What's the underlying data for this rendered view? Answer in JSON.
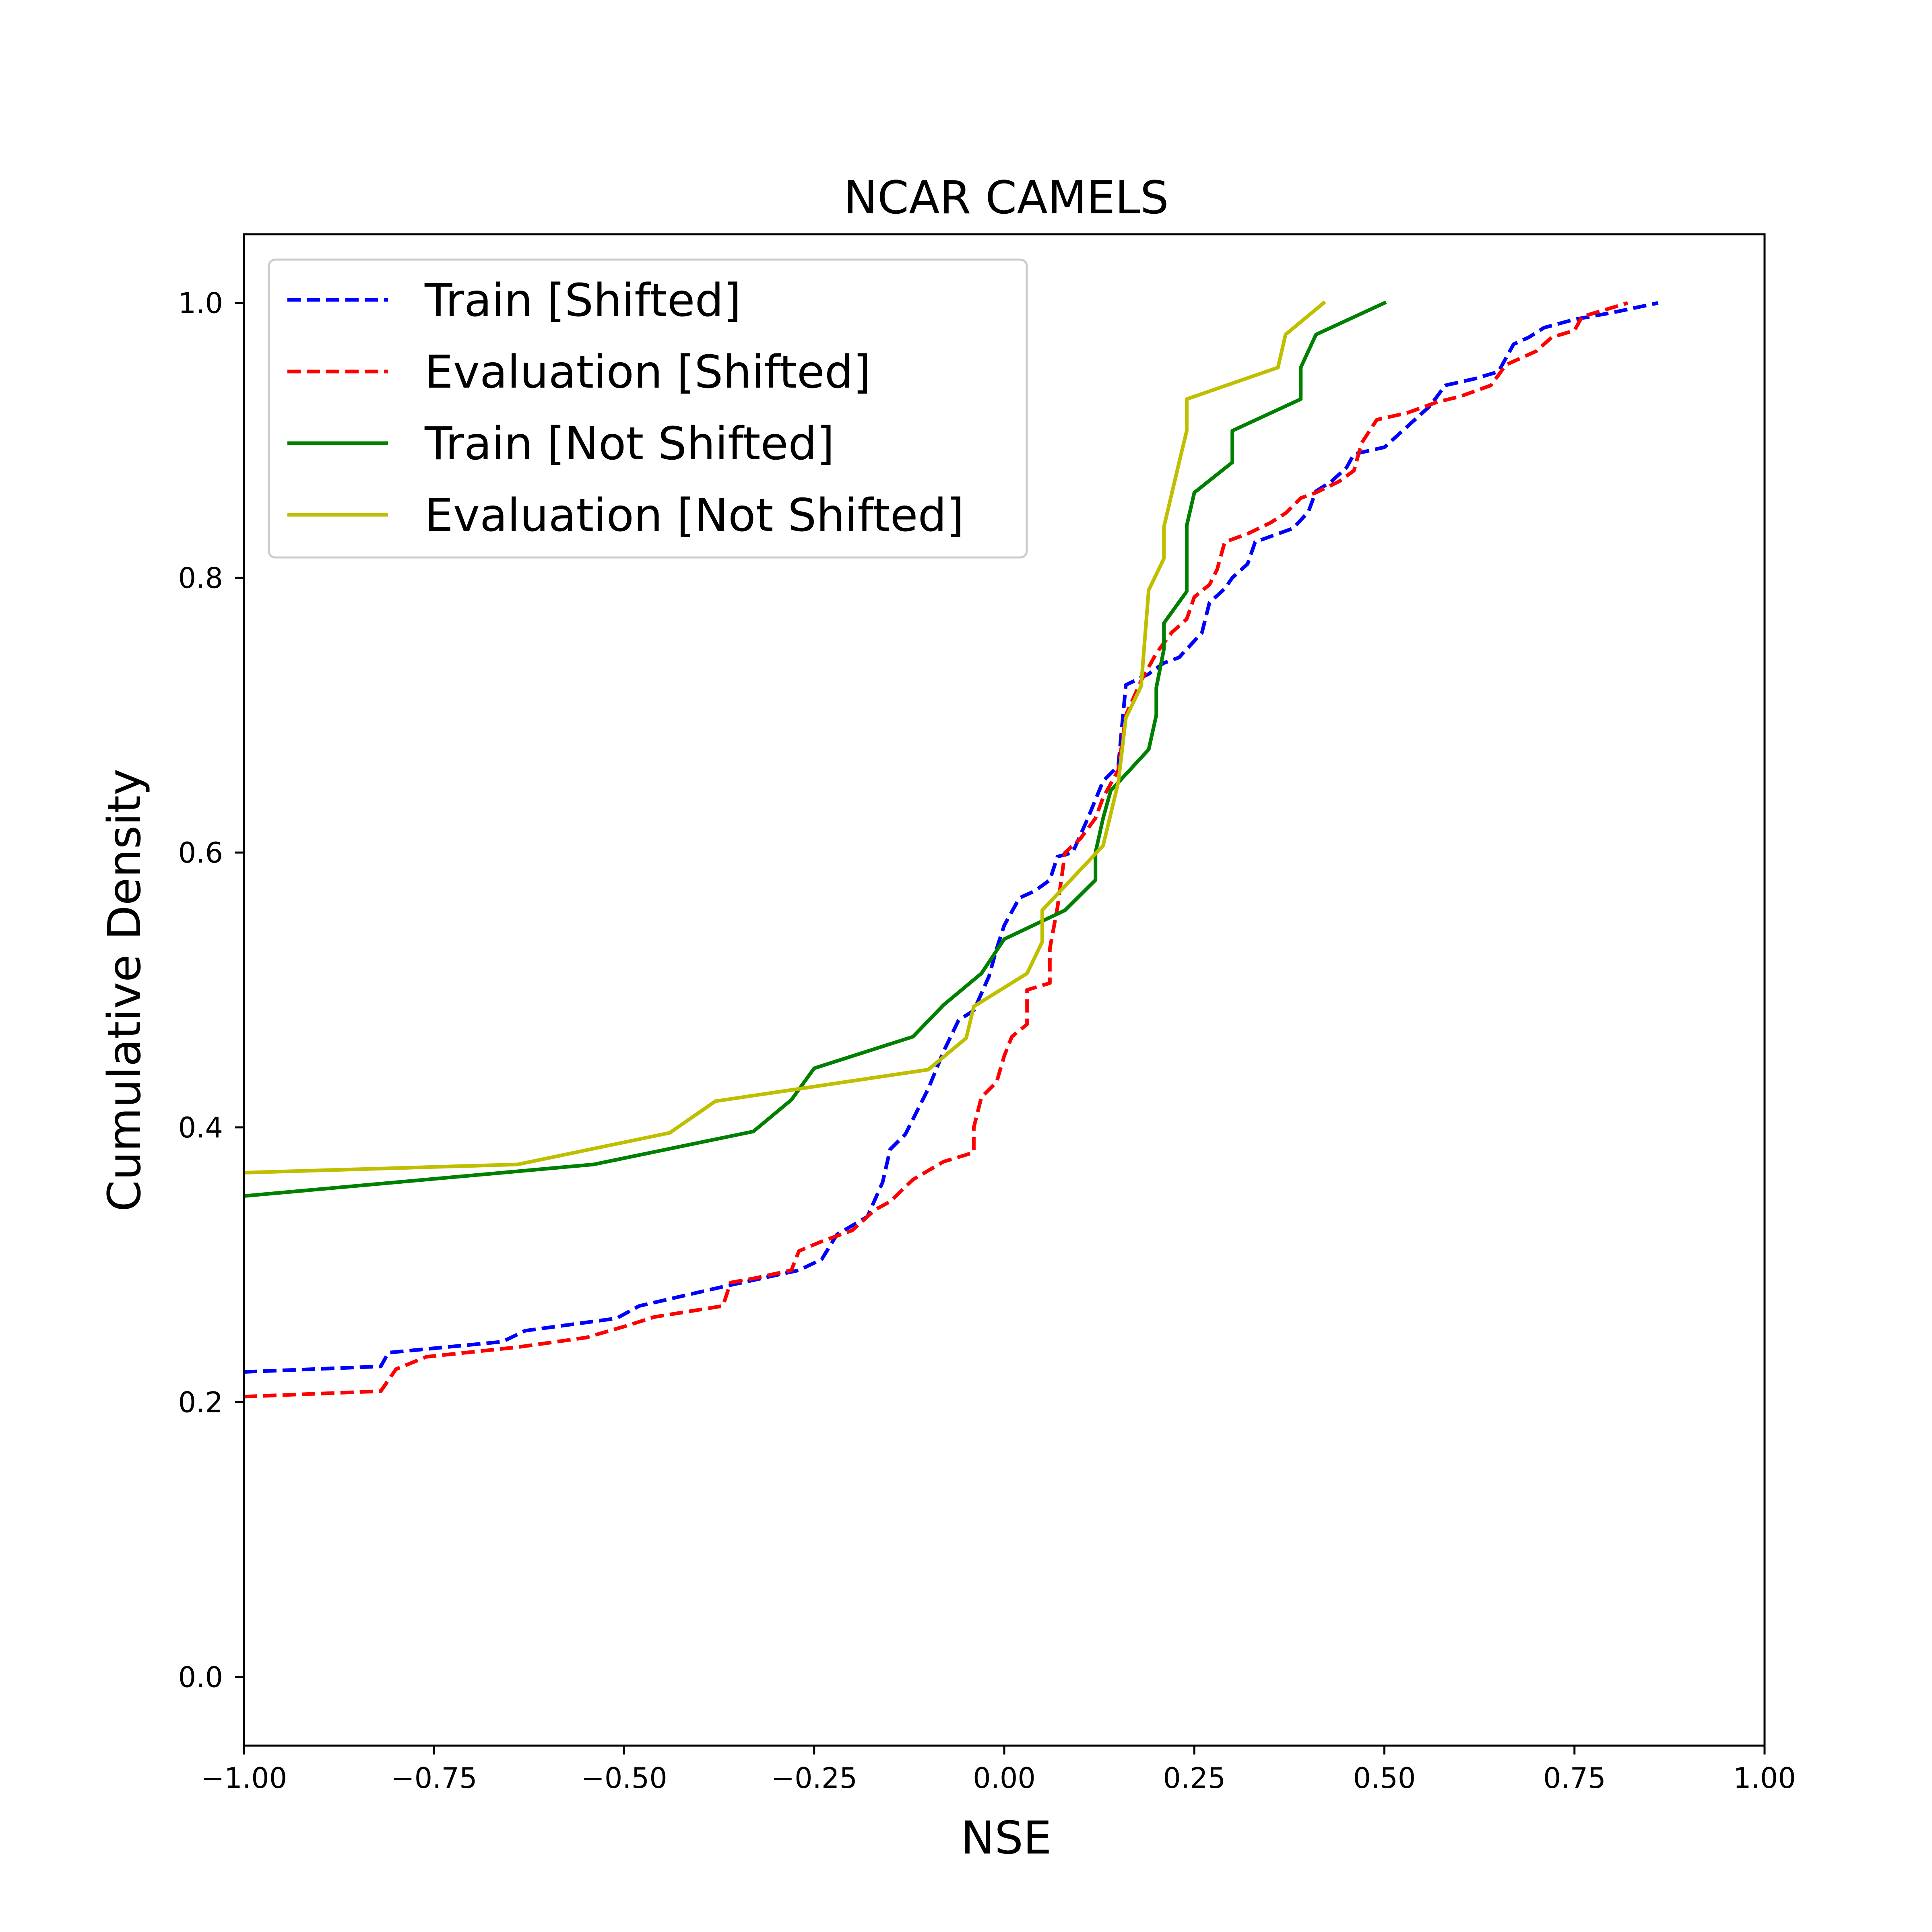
{
  "chart_data": {
    "type": "line",
    "title": "NCAR CAMELS",
    "xlabel": "NSE",
    "ylabel": "Cumulative Density",
    "xlim": [
      -1.0,
      1.0
    ],
    "ylim": [
      -0.05,
      1.05
    ],
    "x_ticks": [
      -1.0,
      -0.75,
      -0.5,
      -0.25,
      0.0,
      0.25,
      0.5,
      0.75,
      1.0
    ],
    "x_tick_labels": [
      "−1.00",
      "−0.75",
      "−0.50",
      "−0.25",
      "0.00",
      "0.25",
      "0.50",
      "0.75",
      "1.00"
    ],
    "y_ticks": [
      0.0,
      0.2,
      0.4,
      0.6,
      0.8,
      1.0
    ],
    "y_tick_labels": [
      "0.0",
      "0.2",
      "0.4",
      "0.6",
      "0.8",
      "1.0"
    ],
    "grid": false,
    "legend_position": "top-left",
    "series": [
      {
        "name": "Train [Shifted]",
        "color": "#0000ff",
        "style": "dashed",
        "points": [
          [
            -1.0,
            0.222
          ],
          [
            -0.82,
            0.226
          ],
          [
            -0.81,
            0.236
          ],
          [
            -0.66,
            0.244
          ],
          [
            -0.63,
            0.252
          ],
          [
            -0.51,
            0.261
          ],
          [
            -0.48,
            0.27
          ],
          [
            -0.37,
            0.284
          ],
          [
            -0.27,
            0.296
          ],
          [
            -0.24,
            0.304
          ],
          [
            -0.22,
            0.322
          ],
          [
            -0.18,
            0.335
          ],
          [
            -0.16,
            0.36
          ],
          [
            -0.15,
            0.384
          ],
          [
            -0.13,
            0.395
          ],
          [
            -0.1,
            0.428
          ],
          [
            -0.08,
            0.455
          ],
          [
            -0.06,
            0.478
          ],
          [
            -0.04,
            0.485
          ],
          [
            -0.02,
            0.51
          ],
          [
            -0.01,
            0.53
          ],
          [
            0.0,
            0.547
          ],
          [
            0.02,
            0.567
          ],
          [
            0.04,
            0.572
          ],
          [
            0.06,
            0.58
          ],
          [
            0.07,
            0.597
          ],
          [
            0.09,
            0.6
          ],
          [
            0.11,
            0.625
          ],
          [
            0.13,
            0.652
          ],
          [
            0.15,
            0.663
          ],
          [
            0.16,
            0.722
          ],
          [
            0.19,
            0.73
          ],
          [
            0.21,
            0.738
          ],
          [
            0.23,
            0.742
          ],
          [
            0.26,
            0.76
          ],
          [
            0.27,
            0.782
          ],
          [
            0.29,
            0.792
          ],
          [
            0.3,
            0.8
          ],
          [
            0.32,
            0.81
          ],
          [
            0.33,
            0.826
          ],
          [
            0.36,
            0.832
          ],
          [
            0.38,
            0.836
          ],
          [
            0.4,
            0.848
          ],
          [
            0.41,
            0.863
          ],
          [
            0.43,
            0.87
          ],
          [
            0.45,
            0.88
          ],
          [
            0.46,
            0.89
          ],
          [
            0.5,
            0.895
          ],
          [
            0.53,
            0.91
          ],
          [
            0.56,
            0.925
          ],
          [
            0.58,
            0.94
          ],
          [
            0.62,
            0.945
          ],
          [
            0.65,
            0.95
          ],
          [
            0.67,
            0.97
          ],
          [
            0.69,
            0.975
          ],
          [
            0.71,
            0.982
          ],
          [
            0.75,
            0.988
          ],
          [
            0.8,
            0.993
          ],
          [
            0.86,
            1.0
          ]
        ]
      },
      {
        "name": "Evaluation [Shifted]",
        "color": "#ff0000",
        "style": "dashed",
        "points": [
          [
            -1.0,
            0.204
          ],
          [
            -0.82,
            0.208
          ],
          [
            -0.8,
            0.224
          ],
          [
            -0.76,
            0.233
          ],
          [
            -0.64,
            0.24
          ],
          [
            -0.55,
            0.247
          ],
          [
            -0.5,
            0.255
          ],
          [
            -0.46,
            0.262
          ],
          [
            -0.37,
            0.27
          ],
          [
            -0.36,
            0.287
          ],
          [
            -0.33,
            0.29
          ],
          [
            -0.28,
            0.296
          ],
          [
            -0.27,
            0.31
          ],
          [
            -0.24,
            0.317
          ],
          [
            -0.2,
            0.325
          ],
          [
            -0.17,
            0.34
          ],
          [
            -0.15,
            0.346
          ],
          [
            -0.12,
            0.362
          ],
          [
            -0.08,
            0.375
          ],
          [
            -0.05,
            0.38
          ],
          [
            -0.04,
            0.382
          ],
          [
            -0.04,
            0.4
          ],
          [
            -0.03,
            0.422
          ],
          [
            -0.01,
            0.433
          ],
          [
            0.0,
            0.452
          ],
          [
            0.01,
            0.466
          ],
          [
            0.03,
            0.475
          ],
          [
            0.03,
            0.5
          ],
          [
            0.06,
            0.505
          ],
          [
            0.06,
            0.53
          ],
          [
            0.07,
            0.56
          ],
          [
            0.08,
            0.6
          ],
          [
            0.1,
            0.61
          ],
          [
            0.12,
            0.625
          ],
          [
            0.13,
            0.64
          ],
          [
            0.15,
            0.66
          ],
          [
            0.16,
            0.7
          ],
          [
            0.18,
            0.725
          ],
          [
            0.2,
            0.745
          ],
          [
            0.22,
            0.76
          ],
          [
            0.24,
            0.77
          ],
          [
            0.25,
            0.786
          ],
          [
            0.27,
            0.795
          ],
          [
            0.28,
            0.806
          ],
          [
            0.29,
            0.826
          ],
          [
            0.32,
            0.832
          ],
          [
            0.35,
            0.84
          ],
          [
            0.37,
            0.847
          ],
          [
            0.39,
            0.858
          ],
          [
            0.41,
            0.862
          ],
          [
            0.44,
            0.87
          ],
          [
            0.46,
            0.878
          ],
          [
            0.47,
            0.898
          ],
          [
            0.49,
            0.915
          ],
          [
            0.53,
            0.92
          ],
          [
            0.57,
            0.928
          ],
          [
            0.6,
            0.932
          ],
          [
            0.64,
            0.94
          ],
          [
            0.66,
            0.955
          ],
          [
            0.7,
            0.965
          ],
          [
            0.72,
            0.975
          ],
          [
            0.75,
            0.98
          ],
          [
            0.76,
            0.99
          ],
          [
            0.82,
            1.0
          ]
        ]
      },
      {
        "name": "Train [Not Shifted]",
        "color": "#008000",
        "style": "solid",
        "points": [
          [
            -1.0,
            0.35
          ],
          [
            -0.54,
            0.373
          ],
          [
            -0.33,
            0.397
          ],
          [
            -0.28,
            0.42
          ],
          [
            -0.25,
            0.443
          ],
          [
            -0.12,
            0.466
          ],
          [
            -0.08,
            0.489
          ],
          [
            -0.03,
            0.512
          ],
          [
            0.0,
            0.537
          ],
          [
            0.08,
            0.558
          ],
          [
            0.12,
            0.58
          ],
          [
            0.12,
            0.6
          ],
          [
            0.13,
            0.625
          ],
          [
            0.14,
            0.645
          ],
          [
            0.19,
            0.675
          ],
          [
            0.2,
            0.7
          ],
          [
            0.2,
            0.72
          ],
          [
            0.21,
            0.748
          ],
          [
            0.21,
            0.767
          ],
          [
            0.24,
            0.79
          ],
          [
            0.24,
            0.814
          ],
          [
            0.24,
            0.838
          ],
          [
            0.25,
            0.862
          ],
          [
            0.3,
            0.884
          ],
          [
            0.3,
            0.907
          ],
          [
            0.39,
            0.93
          ],
          [
            0.39,
            0.953
          ],
          [
            0.41,
            0.977
          ],
          [
            0.5,
            1.0
          ]
        ]
      },
      {
        "name": "Evaluation [Not Shifted]",
        "color": "#bfbf00",
        "style": "solid",
        "points": [
          [
            -1.0,
            0.367
          ],
          [
            -0.64,
            0.373
          ],
          [
            -0.44,
            0.396
          ],
          [
            -0.38,
            0.419
          ],
          [
            -0.1,
            0.442
          ],
          [
            -0.05,
            0.465
          ],
          [
            -0.04,
            0.488
          ],
          [
            0.03,
            0.512
          ],
          [
            0.05,
            0.535
          ],
          [
            0.05,
            0.558
          ],
          [
            0.13,
            0.605
          ],
          [
            0.14,
            0.628
          ],
          [
            0.15,
            0.651
          ],
          [
            0.16,
            0.698
          ],
          [
            0.18,
            0.721
          ],
          [
            0.19,
            0.791
          ],
          [
            0.21,
            0.814
          ],
          [
            0.21,
            0.837
          ],
          [
            0.23,
            0.884
          ],
          [
            0.24,
            0.907
          ],
          [
            0.24,
            0.93
          ],
          [
            0.36,
            0.953
          ],
          [
            0.37,
            0.977
          ],
          [
            0.42,
            1.0
          ]
        ]
      }
    ]
  }
}
